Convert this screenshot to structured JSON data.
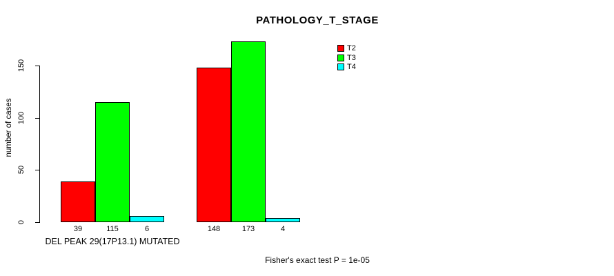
{
  "chart_data": {
    "type": "bar",
    "title": "PATHOLOGY_T_STAGE",
    "xlabel": "",
    "ylabel": "number of cases",
    "categories": [
      "DEL PEAK 29(17P13.1) MUTATED",
      ""
    ],
    "series": [
      {
        "name": "T2",
        "color": "#ff0000",
        "values": [
          39,
          148
        ]
      },
      {
        "name": "T3",
        "color": "#00ff00",
        "values": [
          115,
          173
        ]
      },
      {
        "name": "T4",
        "color": "#00ffff",
        "values": [
          6,
          4
        ]
      }
    ],
    "yticks": [
      0,
      50,
      100,
      150
    ],
    "ylim": [
      0,
      175
    ],
    "grid": false,
    "bar_value_labels": true,
    "legend_position": "top-right-inside",
    "annotation": "Fisher's exact test P = 1e-05"
  },
  "colors": {
    "background": "#ffffff",
    "axis": "#000000",
    "text": "#000000"
  }
}
